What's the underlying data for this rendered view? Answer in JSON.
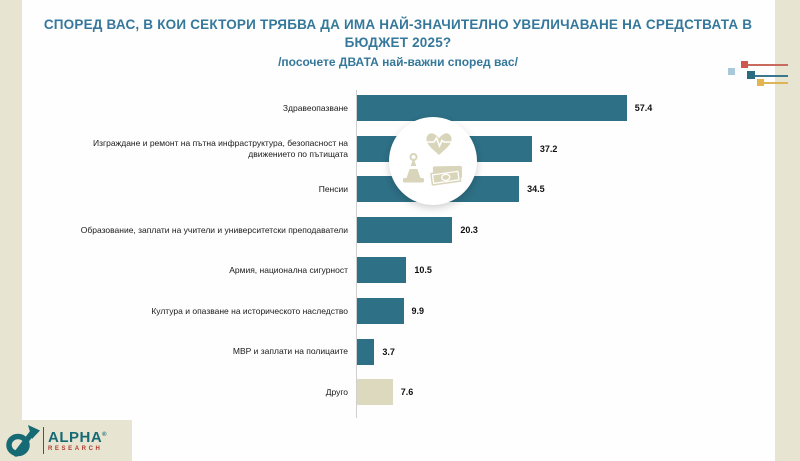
{
  "title": {
    "line1": "СПОРЕД ВАС, В КОИ СЕКТОРИ ТРЯБВА ДА ИМА НАЙ-ЗНАЧИТЕЛНО УВЕЛИЧАВАНЕ НА СРЕДСТВАТА В БЮДЖЕТ 2025?",
    "subtitle": "/посочете ДВАТА най-важни според вас/"
  },
  "chart_data": {
    "type": "bar",
    "orientation": "horizontal",
    "title": "СПОРЕД ВАС, В КОИ СЕКТОРИ ТРЯБВА ДА ИМА НАЙ-ЗНАЧИТЕЛНО УВЕЛИЧАВАНЕ НА СРЕДСТВАТА В БЮДЖЕТ 2025?",
    "subtitle": "/посочете ДВАТА най-важни според вас/",
    "categories": [
      "Здравеопазване",
      "Изграждане и ремонт на пътна инфраструктура, безопасност на движението по пътищата",
      "Пенсии",
      "Образование, заплати на учители и университетски преподаватели",
      "Армия, национална сигурност",
      "Култура и опазване на историческото наследство",
      "МВР и заплати на полицаите",
      "Друго"
    ],
    "values": [
      57.4,
      37.2,
      34.5,
      20.3,
      10.5,
      9.9,
      3.7,
      7.6
    ],
    "bar_colors": [
      "#2E7086",
      "#2E7086",
      "#2E7086",
      "#2E7086",
      "#2E7086",
      "#2E7086",
      "#2E7086",
      "#DDD9BF"
    ],
    "xlim": [
      0,
      60
    ],
    "grid": false,
    "legend": false,
    "value_labels": "right-of-bar"
  },
  "watermark": {
    "icons": [
      "traffic-cone-icon",
      "heart-pulse-icon",
      "banknotes-icon"
    ],
    "icon_color": "#D9D5BA"
  },
  "decoration": {
    "squares": [
      "#CE574D",
      "#A9C8D9",
      "#2A6B82",
      "#E4B54E"
    ]
  },
  "branding": {
    "name": "ALPHA",
    "registered": "®",
    "sub": "RESEARCH"
  },
  "colors": {
    "title": "#35789B",
    "bar": "#2E7086",
    "other_bar": "#DDD9BF",
    "background": "#E7E4D2",
    "panel": "#FEFEFE"
  }
}
